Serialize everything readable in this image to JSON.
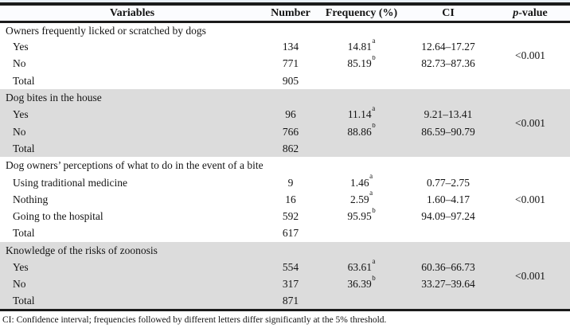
{
  "colors": {
    "rule": "#1b1b1b",
    "shade": "#dcdcdc",
    "page_strip": "#e9f0f8",
    "header_bg": "#fbfcfe",
    "text": "#141414"
  },
  "table": {
    "header": {
      "variables": "Variables",
      "number": "Number",
      "frequency": "Frequency (%)",
      "ci": "CI",
      "p_italic": "p",
      "p_rest": "-value"
    },
    "total_label": "Total",
    "sections": [
      {
        "title": "Owners frequently licked or scratched by dogs",
        "shaded": false,
        "p_value": "<0.001",
        "total": "905",
        "items": [
          {
            "label": "Yes",
            "number": "134",
            "frequency": "14.81",
            "sup": "a",
            "ci": "12.64–17.27"
          },
          {
            "label": "No",
            "number": "771",
            "frequency": "85.19",
            "sup": "b",
            "ci": "82.73–87.36"
          }
        ]
      },
      {
        "title": "Dog bites in the house",
        "shaded": true,
        "p_value": "<0.001",
        "total": "862",
        "items": [
          {
            "label": "Yes",
            "number": "96",
            "frequency": "11.14",
            "sup": "a",
            "ci": "9.21–13.41"
          },
          {
            "label": "No",
            "number": "766",
            "frequency": "88.86",
            "sup": "b",
            "ci": "86.59–90.79"
          }
        ]
      },
      {
        "title": "Dog owners’ perceptions of what to do in the event of a bite",
        "shaded": false,
        "p_value": "<0.001",
        "total": "617",
        "items": [
          {
            "label": "Using traditional medicine",
            "number": "9",
            "frequency": "1.46",
            "sup": "a",
            "ci": "0.77–2.75"
          },
          {
            "label": "Nothing",
            "number": "16",
            "frequency": "2.59",
            "sup": "a",
            "ci": "1.60–4.17"
          },
          {
            "label": "Going to the hospital",
            "number": "592",
            "frequency": "95.95",
            "sup": "b",
            "ci": "94.09–97.24"
          }
        ]
      },
      {
        "title": "Knowledge of the risks of zoonosis",
        "shaded": true,
        "p_value": "<0.001",
        "total": "871",
        "items": [
          {
            "label": "Yes",
            "number": "554",
            "frequency": "63.61",
            "sup": "a",
            "ci": "60.36–66.73"
          },
          {
            "label": "No",
            "number": "317",
            "frequency": "36.39",
            "sup": "b",
            "ci": "33.27–39.64"
          }
        ]
      }
    ],
    "footnote": "CI: Confidence interval; frequencies followed by different letters differ significantly at the 5% threshold."
  }
}
